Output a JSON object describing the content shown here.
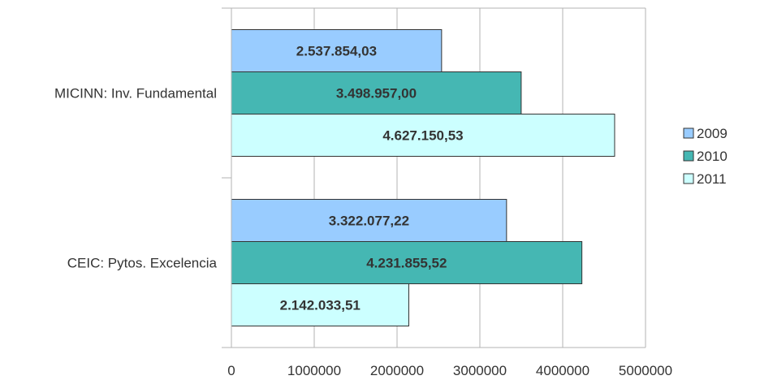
{
  "chart_data": {
    "type": "bar",
    "orientation": "horizontal",
    "categories": [
      "MICINN: Inv. Fundamental",
      "CEIC: Pytos. Excelencia"
    ],
    "series": [
      {
        "name": "2009",
        "values": [
          2537854.03,
          3322077.22
        ],
        "labels": [
          "2.537.854,03",
          "3.322.077,22"
        ],
        "color": "#99ccff"
      },
      {
        "name": "2010",
        "values": [
          3498957.0,
          4231855.52
        ],
        "labels": [
          "3.498.957,00",
          "4.231.855,52"
        ],
        "color": "#45b7b3"
      },
      {
        "name": "2011",
        "values": [
          4627150.53,
          2142033.51
        ],
        "labels": [
          "4.627.150,53",
          "2.142.033,51"
        ],
        "color": "#ccffff"
      }
    ],
    "x_ticks": [
      "0",
      "1000000",
      "2000000",
      "3000000",
      "4000000",
      "5000000"
    ],
    "xlim": [
      0,
      5000000
    ],
    "grid": true,
    "legend_position": "right",
    "title": "",
    "xlabel": "",
    "ylabel": ""
  }
}
